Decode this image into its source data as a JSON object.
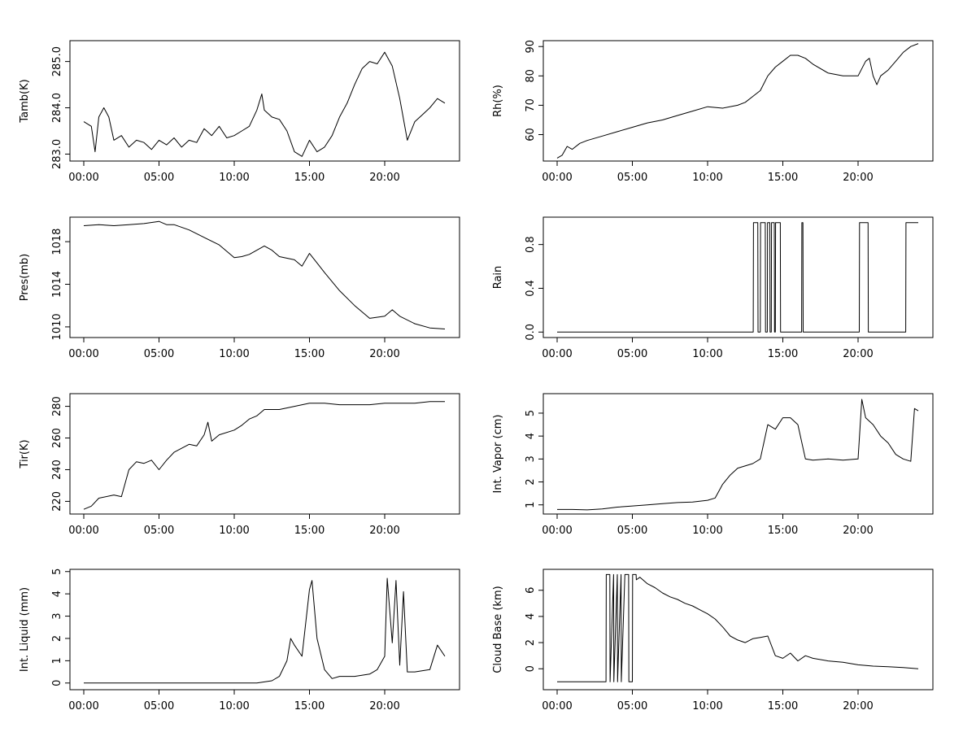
{
  "chart_data": [
    {
      "type": "line",
      "xlabel": "",
      "ylabel": "Tamb(K)",
      "xlim": [
        "00:00",
        "24:00"
      ],
      "ylim": [
        282.85,
        285.45
      ],
      "x_ticks": [
        "00:00",
        "05:00",
        "10:00",
        "15:00",
        "20:00"
      ],
      "y_ticks": [
        "283.0",
        "284.0",
        "285.0"
      ],
      "x": [
        "00:00",
        "00:30",
        "00:45",
        "01:00",
        "01:20",
        "01:40",
        "02:00",
        "02:30",
        "03:00",
        "03:30",
        "04:00",
        "04:30",
        "05:00",
        "05:30",
        "06:00",
        "06:30",
        "07:00",
        "07:30",
        "08:00",
        "08:30",
        "09:00",
        "09:30",
        "10:00",
        "10:30",
        "11:00",
        "11:30",
        "11:50",
        "12:00",
        "12:30",
        "13:00",
        "13:30",
        "14:00",
        "14:30",
        "15:00",
        "15:30",
        "16:00",
        "16:30",
        "17:00",
        "17:30",
        "18:00",
        "18:30",
        "19:00",
        "19:30",
        "20:00",
        "20:30",
        "21:00",
        "21:30",
        "22:00",
        "22:30",
        "23:00",
        "23:30",
        "24:00"
      ],
      "values": [
        283.7,
        283.6,
        283.05,
        283.8,
        284.0,
        283.8,
        283.3,
        283.4,
        283.15,
        283.3,
        283.25,
        283.1,
        283.3,
        283.2,
        283.35,
        283.15,
        283.3,
        283.25,
        283.55,
        283.4,
        283.6,
        283.35,
        283.4,
        283.5,
        283.6,
        283.95,
        284.3,
        283.95,
        283.8,
        283.75,
        283.5,
        283.05,
        282.95,
        283.3,
        283.05,
        283.15,
        283.4,
        283.8,
        284.1,
        284.5,
        284.85,
        285.0,
        284.95,
        285.2,
        284.9,
        284.2,
        283.3,
        283.7,
        283.85,
        284.0,
        284.2,
        284.1
      ]
    },
    {
      "type": "line",
      "xlabel": "",
      "ylabel": "Rh(%)",
      "xlim": [
        "00:00",
        "24:00"
      ],
      "ylim": [
        51,
        92
      ],
      "x_ticks": [
        "00:00",
        "05:00",
        "10:00",
        "15:00",
        "20:00"
      ],
      "y_ticks": [
        "60",
        "70",
        "80",
        "90"
      ],
      "x": [
        "00:00",
        "00:20",
        "00:40",
        "01:00",
        "01:30",
        "02:00",
        "03:00",
        "04:00",
        "05:00",
        "06:00",
        "07:00",
        "08:00",
        "09:00",
        "10:00",
        "11:00",
        "12:00",
        "12:30",
        "13:00",
        "13:30",
        "14:00",
        "14:30",
        "15:00",
        "15:30",
        "16:00",
        "16:30",
        "17:00",
        "18:00",
        "19:00",
        "20:00",
        "20:30",
        "20:45",
        "21:00",
        "21:15",
        "21:30",
        "22:00",
        "22:30",
        "23:00",
        "23:30",
        "24:00"
      ],
      "values": [
        52,
        53,
        56,
        55,
        57,
        58,
        59.5,
        61,
        62.5,
        64,
        65,
        66.5,
        68,
        69.5,
        69,
        70,
        71,
        73,
        75,
        80,
        83,
        85,
        87,
        87,
        86,
        84,
        81,
        80,
        80,
        85,
        86,
        80,
        77,
        80,
        82,
        85,
        88,
        90,
        91
      ]
    },
    {
      "type": "line",
      "xlabel": "",
      "ylabel": "Pres(mb)",
      "xlim": [
        "00:00",
        "24:00"
      ],
      "ylim": [
        1009.0,
        1020.3
      ],
      "x_ticks": [
        "00:00",
        "05:00",
        "10:00",
        "15:00",
        "20:00"
      ],
      "y_ticks": [
        "1010",
        "1014",
        "1018"
      ],
      "x": [
        "00:00",
        "01:00",
        "02:00",
        "03:00",
        "04:00",
        "05:00",
        "05:30",
        "06:00",
        "07:00",
        "08:00",
        "09:00",
        "10:00",
        "10:30",
        "11:00",
        "12:00",
        "12:30",
        "13:00",
        "14:00",
        "14:30",
        "15:00",
        "15:30",
        "16:00",
        "17:00",
        "18:00",
        "19:00",
        "20:00",
        "20:30",
        "21:00",
        "22:00",
        "23:00",
        "24:00"
      ],
      "values": [
        1019.5,
        1019.6,
        1019.5,
        1019.6,
        1019.7,
        1019.9,
        1019.6,
        1019.6,
        1019.1,
        1018.4,
        1017.7,
        1016.5,
        1016.6,
        1016.8,
        1017.6,
        1017.2,
        1016.6,
        1016.3,
        1015.7,
        1016.9,
        1016.0,
        1015.1,
        1013.4,
        1012.0,
        1010.8,
        1011.0,
        1011.6,
        1011.0,
        1010.3,
        1009.9,
        1009.8
      ]
    },
    {
      "type": "line",
      "xlabel": "",
      "ylabel": "Rain",
      "xlim": [
        "00:00",
        "24:00"
      ],
      "ylim": [
        -0.05,
        1.05
      ],
      "x_ticks": [
        "00:00",
        "05:00",
        "10:00",
        "15:00",
        "20:00"
      ],
      "y_ticks": [
        "0.0",
        "0.4",
        "0.8"
      ],
      "x": [
        "00:00",
        "13:02",
        "13:03",
        "13:20",
        "13:21",
        "13:30",
        "13:31",
        "13:50",
        "13:51",
        "13:58",
        "13:59",
        "14:08",
        "14:09",
        "14:14",
        "14:15",
        "14:26",
        "14:27",
        "14:30",
        "14:31",
        "14:50",
        "14:51",
        "16:15",
        "16:16",
        "16:20",
        "16:21",
        "20:05",
        "20:06",
        "20:40",
        "20:41",
        "23:10",
        "23:11",
        "24:00"
      ],
      "values": [
        0,
        0,
        1,
        1,
        0,
        0,
        1,
        1,
        0,
        0,
        1,
        1,
        0,
        0,
        1,
        1,
        0,
        0,
        1,
        1,
        0,
        0,
        1,
        1,
        0,
        0,
        1,
        1,
        0,
        0,
        1,
        1
      ]
    },
    {
      "type": "line",
      "xlabel": "",
      "ylabel": "Tir(K)",
      "xlim": [
        "00:00",
        "24:00"
      ],
      "ylim": [
        212,
        288
      ],
      "x_ticks": [
        "00:00",
        "05:00",
        "10:00",
        "15:00",
        "20:00"
      ],
      "y_ticks": [
        "220",
        "240",
        "260",
        "280"
      ],
      "x": [
        "00:00",
        "00:30",
        "01:00",
        "02:00",
        "02:30",
        "03:00",
        "03:30",
        "04:00",
        "04:30",
        "05:00",
        "05:30",
        "06:00",
        "07:00",
        "07:30",
        "08:00",
        "08:15",
        "08:30",
        "09:00",
        "10:00",
        "10:30",
        "11:00",
        "11:30",
        "12:00",
        "13:00",
        "14:00",
        "15:00",
        "16:00",
        "17:00",
        "18:00",
        "19:00",
        "20:00",
        "21:00",
        "22:00",
        "23:00",
        "24:00"
      ],
      "values": [
        215,
        217,
        222,
        224,
        223,
        240,
        245,
        244,
        246,
        240,
        246,
        251,
        256,
        255,
        262,
        270,
        258,
        262,
        265,
        268,
        272,
        274,
        278,
        278,
        280,
        282,
        282,
        281,
        281,
        281,
        282,
        282,
        282,
        283,
        283
      ]
    },
    {
      "type": "line",
      "xlabel": "",
      "ylabel": "Int. Vapor (cm)",
      "xlim": [
        "00:00",
        "24:00"
      ],
      "ylim": [
        0.6,
        5.85
      ],
      "x_ticks": [
        "00:00",
        "05:00",
        "10:00",
        "15:00",
        "20:00"
      ],
      "y_ticks": [
        "1",
        "2",
        "3",
        "4",
        "5"
      ],
      "x": [
        "00:00",
        "01:00",
        "02:00",
        "03:00",
        "04:00",
        "05:00",
        "06:00",
        "07:00",
        "08:00",
        "09:00",
        "10:00",
        "10:30",
        "11:00",
        "11:30",
        "12:00",
        "13:00",
        "13:30",
        "14:00",
        "14:30",
        "15:00",
        "15:30",
        "16:00",
        "16:30",
        "17:00",
        "18:00",
        "19:00",
        "20:00",
        "20:15",
        "20:30",
        "21:00",
        "21:30",
        "22:00",
        "22:30",
        "23:00",
        "23:30",
        "23:45",
        "24:00"
      ],
      "values": [
        0.8,
        0.8,
        0.78,
        0.82,
        0.9,
        0.95,
        1.0,
        1.05,
        1.1,
        1.12,
        1.2,
        1.3,
        1.9,
        2.3,
        2.6,
        2.8,
        3.0,
        4.5,
        4.3,
        4.8,
        4.8,
        4.5,
        3.0,
        2.95,
        3.0,
        2.95,
        3.0,
        5.6,
        4.8,
        4.5,
        4.0,
        3.7,
        3.2,
        3.0,
        2.9,
        5.2,
        5.1
      ]
    },
    {
      "type": "line",
      "xlabel": "",
      "ylabel": "Int. Liquid (mm)",
      "xlim": [
        "00:00",
        "24:00"
      ],
      "ylim": [
        -0.3,
        5.1
      ],
      "x_ticks": [
        "00:00",
        "05:00",
        "10:00",
        "15:00",
        "20:00"
      ],
      "y_ticks": [
        "0",
        "1",
        "2",
        "3",
        "4",
        "5"
      ],
      "x": [
        "00:00",
        "10:00",
        "11:30",
        "12:30",
        "13:00",
        "13:30",
        "13:45",
        "14:00",
        "14:30",
        "15:00",
        "15:10",
        "15:30",
        "16:00",
        "16:30",
        "17:00",
        "18:00",
        "19:00",
        "19:30",
        "20:00",
        "20:10",
        "20:30",
        "20:45",
        "21:00",
        "21:15",
        "21:30",
        "22:00",
        "23:00",
        "23:30",
        "24:00"
      ],
      "values": [
        0,
        0,
        0,
        0.1,
        0.3,
        1.0,
        2.0,
        1.7,
        1.2,
        4.2,
        4.6,
        2.0,
        0.6,
        0.2,
        0.3,
        0.3,
        0.4,
        0.6,
        1.2,
        4.7,
        1.8,
        4.6,
        0.8,
        4.1,
        0.5,
        0.5,
        0.6,
        1.7,
        1.2
      ]
    },
    {
      "type": "line",
      "xlabel": "",
      "ylabel": "Cloud Base (km)",
      "xlim": [
        "00:00",
        "24:00"
      ],
      "ylim": [
        -1.6,
        7.6
      ],
      "x_ticks": [
        "00:00",
        "05:00",
        "10:00",
        "15:00",
        "20:00"
      ],
      "y_ticks": [
        "0",
        "2",
        "4",
        "6"
      ],
      "x": [
        "00:00",
        "03:15",
        "03:16",
        "03:30",
        "03:31",
        "03:45",
        "03:46",
        "04:00",
        "04:01",
        "04:15",
        "04:16",
        "04:30",
        "04:31",
        "04:45",
        "04:46",
        "05:00",
        "05:01",
        "05:15",
        "05:16",
        "05:30",
        "06:00",
        "06:30",
        "07:00",
        "07:30",
        "08:00",
        "08:30",
        "09:00",
        "09:30",
        "10:00",
        "10:30",
        "11:00",
        "11:30",
        "12:00",
        "12:30",
        "13:00",
        "13:30",
        "14:00",
        "14:30",
        "15:00",
        "15:30",
        "16:00",
        "16:30",
        "17:00",
        "18:00",
        "19:00",
        "20:00",
        "21:00",
        "22:00",
        "23:00",
        "24:00"
      ],
      "values": [
        -1,
        -1,
        7.2,
        7.2,
        -1,
        7.2,
        -1,
        7.2,
        -1,
        7.2,
        -1,
        7.2,
        7.2,
        7.2,
        -1,
        -1,
        7.2,
        7.2,
        6.8,
        7.0,
        6.5,
        6.2,
        5.8,
        5.5,
        5.3,
        5.0,
        4.8,
        4.5,
        4.2,
        3.8,
        3.2,
        2.5,
        2.2,
        2.0,
        2.3,
        2.4,
        2.5,
        1.0,
        0.8,
        1.2,
        0.6,
        1.0,
        0.8,
        0.6,
        0.5,
        0.3,
        0.2,
        0.15,
        0.1,
        0.0
      ]
    }
  ]
}
